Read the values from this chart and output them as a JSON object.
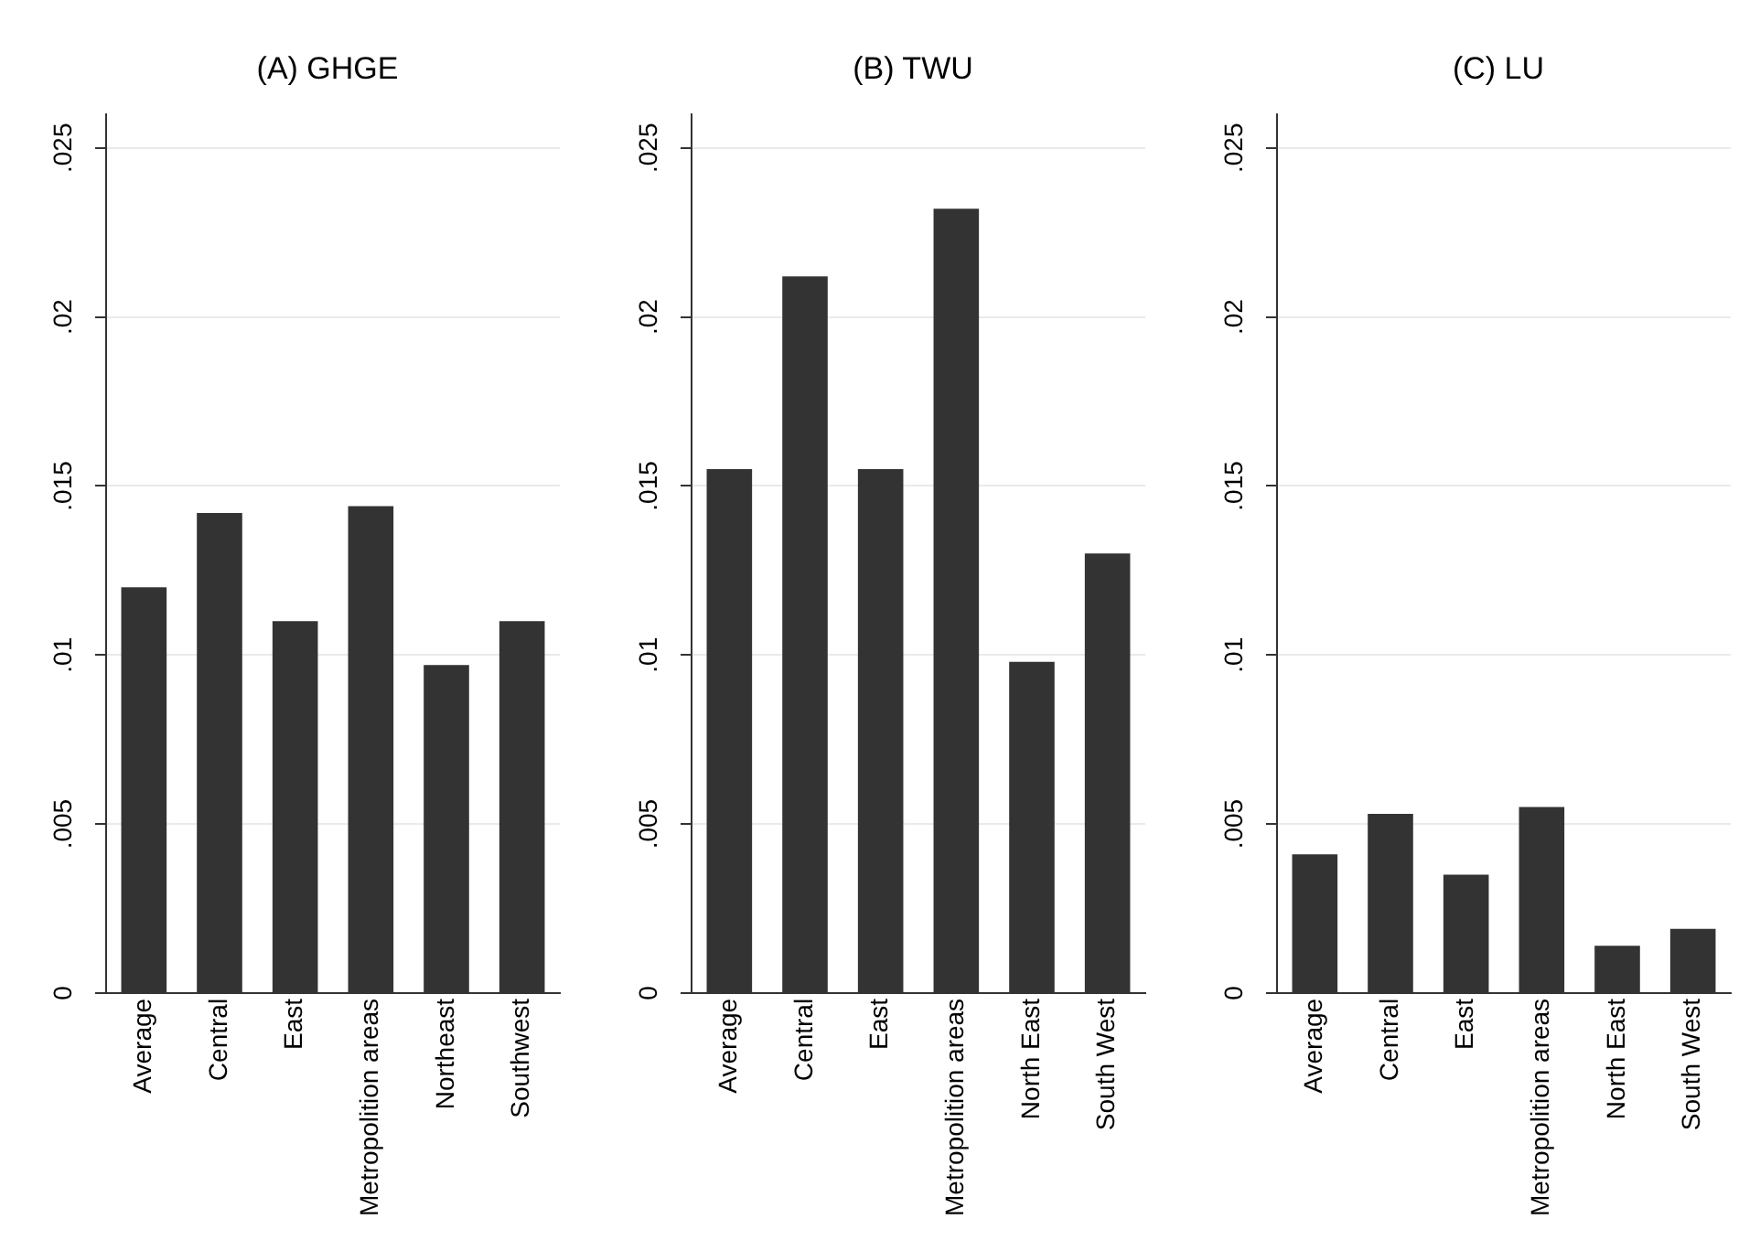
{
  "chart_data": [
    {
      "type": "bar",
      "title": "(A) GHGE",
      "categories": [
        "Average",
        "Central",
        "East",
        "Metropolition areas",
        "Northeast",
        "Southwest"
      ],
      "values": [
        0.012,
        0.0142,
        0.011,
        0.0144,
        0.0097,
        0.011
      ],
      "color": "#333333",
      "ylim": [
        0,
        0.026
      ],
      "yticks": [
        {
          "value": 0,
          "label": "0"
        },
        {
          "value": 0.005,
          "label": ".005"
        },
        {
          "value": 0.01,
          "label": ".01"
        },
        {
          "value": 0.015,
          "label": ".015"
        },
        {
          "value": 0.02,
          "label": ".02"
        },
        {
          "value": 0.025,
          "label": ".025"
        }
      ],
      "grid": "y",
      "legend": false
    },
    {
      "type": "bar",
      "title": "(B) TWU",
      "categories": [
        "Average",
        "Central",
        "East",
        "Metropolition areas",
        "North East",
        "South West"
      ],
      "values": [
        0.0155,
        0.0212,
        0.0155,
        0.0232,
        0.0098,
        0.013
      ],
      "color": "#333333",
      "ylim": [
        0,
        0.026
      ],
      "yticks": [
        {
          "value": 0,
          "label": "0"
        },
        {
          "value": 0.005,
          "label": ".005"
        },
        {
          "value": 0.01,
          "label": ".01"
        },
        {
          "value": 0.015,
          "label": ".015"
        },
        {
          "value": 0.02,
          "label": ".02"
        },
        {
          "value": 0.025,
          "label": ".025"
        }
      ],
      "grid": "y",
      "legend": false
    },
    {
      "type": "bar",
      "title": "(C) LU",
      "categories": [
        "Average",
        "Central",
        "East",
        "Metropolition areas",
        "North East",
        "South West"
      ],
      "values": [
        0.0041,
        0.0053,
        0.0035,
        0.0055,
        0.0014,
        0.0019
      ],
      "color": "#333333",
      "ylim": [
        0,
        0.026
      ],
      "yticks": [
        {
          "value": 0,
          "label": "0"
        },
        {
          "value": 0.005,
          "label": ".005"
        },
        {
          "value": 0.01,
          "label": ".01"
        },
        {
          "value": 0.015,
          "label": ".015"
        },
        {
          "value": 0.02,
          "label": ".02"
        },
        {
          "value": 0.025,
          "label": ".025"
        }
      ],
      "grid": "y",
      "legend": false
    }
  ]
}
